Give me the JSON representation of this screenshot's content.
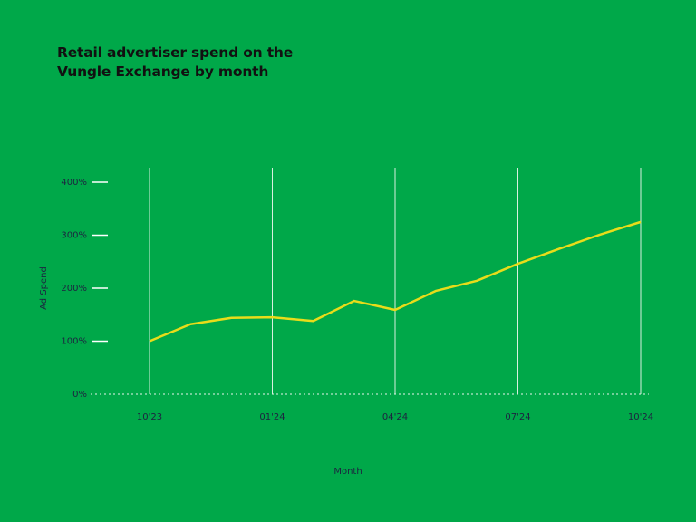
{
  "chart_data": {
    "type": "line",
    "title": "Retail advertiser spend on the Vungle Exchange by month",
    "x_label": "Month",
    "y_label": "Ad Spend",
    "categories": [
      "10'23",
      null,
      null,
      "01'24",
      null,
      null,
      "04'24",
      null,
      null,
      "07'24",
      null,
      null,
      "10'24"
    ],
    "values": [
      100,
      132,
      144,
      145,
      138,
      176,
      159,
      195,
      214,
      246,
      274,
      301,
      325
    ],
    "color": "#e8dc1a",
    "ylim": [
      0,
      400
    ],
    "yticks": [
      {
        "value": 0,
        "label": "0%"
      },
      {
        "value": 100,
        "label": "100%"
      },
      {
        "value": 200,
        "label": "200%"
      },
      {
        "value": 300,
        "label": "300%"
      },
      {
        "value": 400,
        "label": "400%"
      }
    ],
    "grid": true
  }
}
